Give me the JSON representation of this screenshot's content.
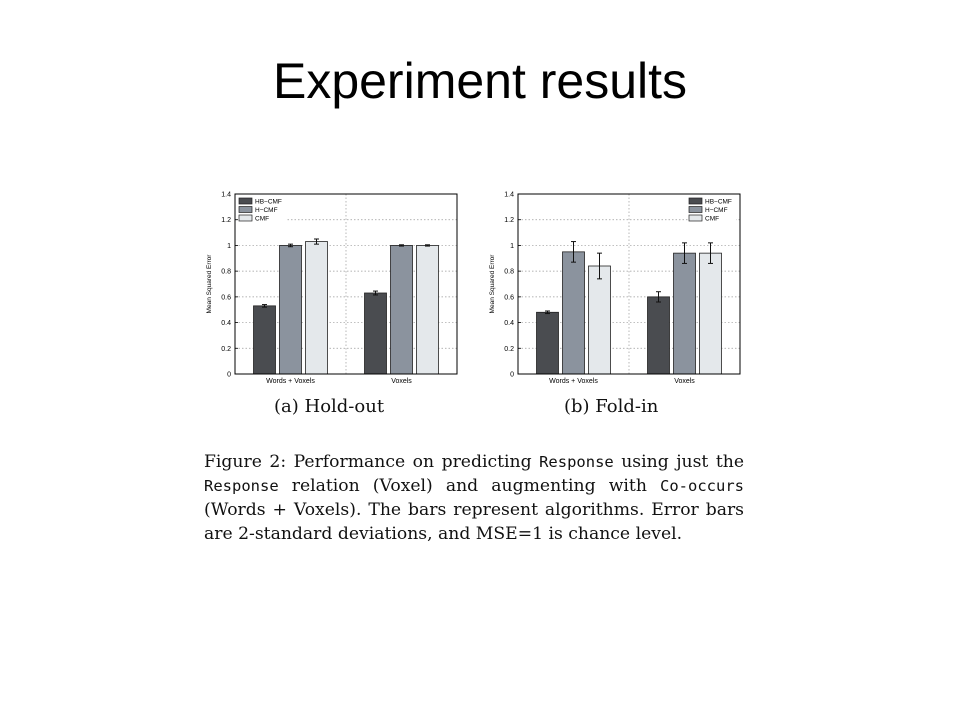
{
  "slide": {
    "title": "Experiment results"
  },
  "chart_data": [
    {
      "type": "bar",
      "subcaption": "(a) Hold-out",
      "ylabel": "Mean Squared Error",
      "categories": [
        "Words + Voxels",
        "Voxels"
      ],
      "ylim": [
        0,
        1.4
      ],
      "yticks": [
        "0",
        "0.2",
        "0.4",
        "0.6",
        "0.8",
        "1",
        "1.2",
        "1.4"
      ],
      "grid": true,
      "legend_position": "top-left",
      "series": [
        {
          "name": "HB−CMF",
          "color": "#4a4c50",
          "values": [
            0.53,
            0.63
          ],
          "errors": [
            0.01,
            0.015
          ]
        },
        {
          "name": "H−CMF",
          "color": "#8b939e",
          "values": [
            1.0,
            1.0
          ],
          "errors": [
            0.01,
            0.005
          ]
        },
        {
          "name": "CMF",
          "color": "#e4e8eb",
          "values": [
            1.03,
            1.0
          ],
          "errors": [
            0.02,
            0.005
          ]
        }
      ]
    },
    {
      "type": "bar",
      "subcaption": "(b) Fold-in",
      "ylabel": "Mean Squared Error",
      "categories": [
        "Words + Voxels",
        "Voxels"
      ],
      "ylim": [
        0,
        1.4
      ],
      "yticks": [
        "0",
        "0.2",
        "0.4",
        "0.6",
        "0.8",
        "1",
        "1.2",
        "1.4"
      ],
      "grid": true,
      "legend_position": "top-right",
      "series": [
        {
          "name": "HB−CMF",
          "color": "#4a4c50",
          "values": [
            0.48,
            0.6
          ],
          "errors": [
            0.01,
            0.04
          ]
        },
        {
          "name": "H−CMF",
          "color": "#8b939e",
          "values": [
            0.95,
            0.94
          ],
          "errors": [
            0.08,
            0.08
          ]
        },
        {
          "name": "CMF",
          "color": "#e4e8eb",
          "values": [
            0.84,
            0.94
          ],
          "errors": [
            0.1,
            0.08
          ]
        }
      ]
    }
  ],
  "caption": {
    "prefix": "Figure 2: Performance on predicting ",
    "code1": "Response",
    "part2": " using just the ",
    "code2": "Response",
    "part3": " relation (Voxel) and augmenting with ",
    "code3": "Co-occurs",
    "part4": " (Words + Voxels). The bars represent algorithms. Error bars are 2-standard deviations, and MSE=1 is chance level."
  }
}
